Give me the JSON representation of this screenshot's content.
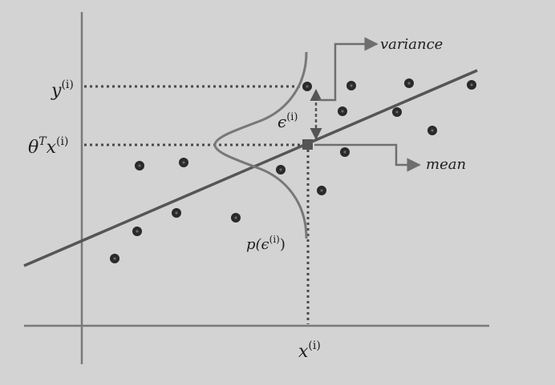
{
  "labels": {
    "y_i": "y",
    "y_i_sup": "(i)",
    "theta": "θ",
    "theta_sup": "T",
    "theta_x": "x",
    "theta_x_sup": "(i)",
    "x_i": "x",
    "x_i_sup": "(i)",
    "epsilon": "ϵ",
    "epsilon_sup": "(i)",
    "p_open": "p(ϵ",
    "p_sup": "(i)",
    "p_close": ")",
    "variance": "variance",
    "mean": "mean"
  },
  "colors": {
    "background": "#d3d3d3",
    "axis": "#7a7a7a",
    "regression_line": "#555555",
    "bell_curve": "#787878",
    "guide": "#4a4a4a",
    "point": "#2a2a2a"
  },
  "icons": {
    "point": "dot-icon",
    "mean_marker": "square-icon",
    "arrow": "arrow-right-icon"
  }
}
